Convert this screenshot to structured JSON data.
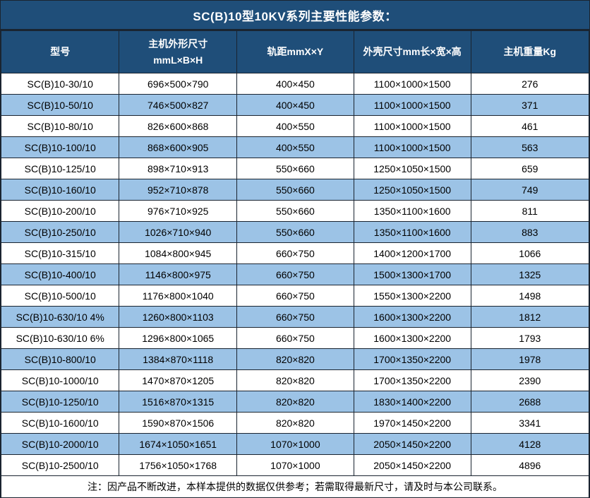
{
  "title": "SC(B)10型10KV系列主要性能参数：",
  "columns": [
    "型号",
    "主机外形尺寸\nmmL×B×H",
    "轨距mmX×Y",
    "外壳尺寸mm长×宽×高",
    "主机重量Kg"
  ],
  "rows": [
    [
      "SC(B)10-30/10",
      "696×500×790",
      "400×450",
      "1100×1000×1500",
      "276"
    ],
    [
      "SC(B)10-50/10",
      "746×500×827",
      "400×450",
      "1100×1000×1500",
      "371"
    ],
    [
      "SC(B)10-80/10",
      "826×600×868",
      "400×550",
      "1100×1000×1500",
      "461"
    ],
    [
      "SC(B)10-100/10",
      "868×600×905",
      "400×550",
      "1100×1000×1500",
      "563"
    ],
    [
      "SC(B)10-125/10",
      "898×710×913",
      "550×660",
      "1250×1050×1500",
      "659"
    ],
    [
      "SC(B)10-160/10",
      "952×710×878",
      "550×660",
      "1250×1050×1500",
      "749"
    ],
    [
      "SC(B)10-200/10",
      "976×710×925",
      "550×660",
      "1350×1100×1600",
      "811"
    ],
    [
      "SC(B)10-250/10",
      "1026×710×940",
      "550×660",
      "1350×1100×1600",
      "883"
    ],
    [
      "SC(B)10-315/10",
      "1084×800×945",
      "660×750",
      "1400×1200×1700",
      "1066"
    ],
    [
      "SC(B)10-400/10",
      "1146×800×975",
      "660×750",
      "1500×1300×1700",
      "1325"
    ],
    [
      "SC(B)10-500/10",
      "1176×800×1040",
      "660×750",
      "1550×1300×2200",
      "1498"
    ],
    [
      "SC(B)10-630/10 4%",
      "1260×800×1103",
      "660×750",
      "1600×1300×2200",
      "1812"
    ],
    [
      "SC(B)10-630/10 6%",
      "1296×800×1065",
      "660×750",
      "1600×1300×2200",
      "1793"
    ],
    [
      "SC(B)10-800/10",
      "1384×870×1118",
      "820×820",
      "1700×1350×2200",
      "1978"
    ],
    [
      "SC(B)10-1000/10",
      "1470×870×1205",
      "820×820",
      "1700×1350×2200",
      "2390"
    ],
    [
      "SC(B)10-1250/10",
      "1516×870×1315",
      "820×820",
      "1830×1400×2200",
      "2688"
    ],
    [
      "SC(B)10-1600/10",
      "1590×870×1506",
      "820×820",
      "1970×1450×2200",
      "3341"
    ],
    [
      "SC(B)10-2000/10",
      "1674×1050×1651",
      "1070×1000",
      "2050×1450×2200",
      "4128"
    ],
    [
      "SC(B)10-2500/10",
      "1756×1050×1768",
      "1070×1000",
      "2050×1450×2200",
      "4896"
    ]
  ],
  "note": "注：因产品不断改进，本样本提供的数据仅供参考；若需取得最新尺寸，请及时与本公司联系。",
  "colors": {
    "header_bg": "#1F4E79",
    "alt_row_bg": "#9CC3E6",
    "border": "#1A2430",
    "header_text": "#FFFFFF",
    "body_text": "#000000"
  }
}
